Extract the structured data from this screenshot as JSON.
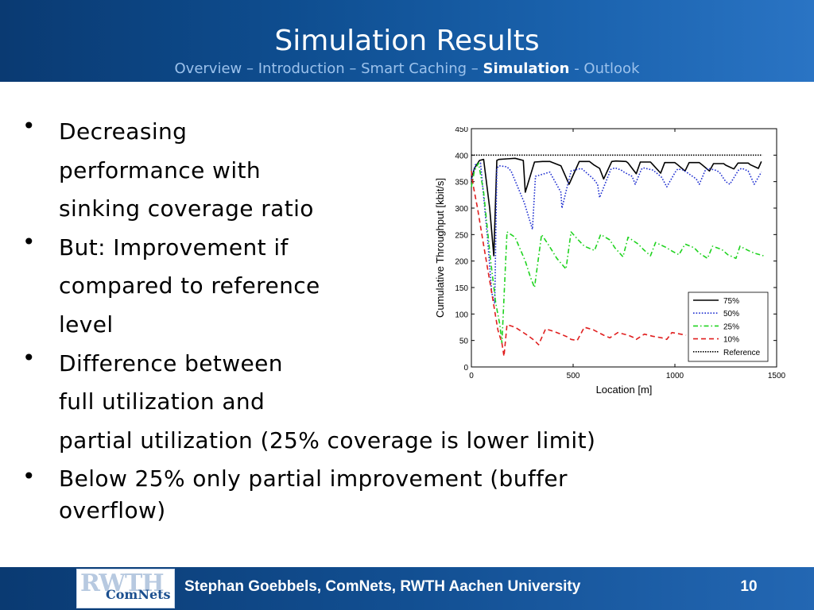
{
  "slide": {
    "title": "Simulation Results",
    "breadcrumb": {
      "prefix": "Overview – Introduction – Smart Caching – ",
      "current": "Simulation",
      "suffix": " - Outlook"
    },
    "bullets": [
      {
        "marker": "•",
        "lines": [
          "Decreasing",
          "performance with",
          "sinking coverage ratio"
        ]
      },
      {
        "marker": "•",
        "lines": [
          "But: Improvement if",
          "compared to reference",
          "level"
        ]
      },
      {
        "marker": "•",
        "lines": [
          "Difference between",
          "full utilization and",
          "partial utilization (25% coverage is lower limit)"
        ]
      },
      {
        "marker": "•",
        "lines": [
          "Below 25% only partial improvement (buffer",
          "overflow)"
        ]
      }
    ],
    "footer": {
      "logo_top": "RWTH",
      "logo_bottom": "ComNets",
      "author": "Stephan Goebbels, ComNets, RWTH Aachen University",
      "page": "10"
    },
    "colors": {
      "header_bg": "#0e4d8f",
      "breadcrumb": "#9cc2ec",
      "footer_bg": "#124f92"
    }
  },
  "chart_data": {
    "type": "line",
    "title": "",
    "xlabel": "Location [m]",
    "ylabel": "Cumulative Throughput [kbit/s]",
    "xlim": [
      0,
      1500
    ],
    "ylim": [
      0,
      450
    ],
    "xticks": [
      0,
      500,
      1000,
      1500
    ],
    "yticks": [
      0,
      50,
      100,
      150,
      200,
      250,
      300,
      350,
      400,
      450
    ],
    "grid": false,
    "legend_position": "bottom-right",
    "series": [
      {
        "name": "75%",
        "color": "#000000",
        "dash": "solid",
        "x": [
          0,
          15,
          40,
          60,
          90,
          110,
          125,
          135,
          175,
          215,
          255,
          265,
          310,
          350,
          385,
          440,
          480,
          530,
          580,
          600,
          630,
          650,
          690,
          710,
          760,
          770,
          810,
          830,
          880,
          890,
          930,
          950,
          1000,
          1010,
          1050,
          1070,
          1120,
          1130,
          1170,
          1190,
          1240,
          1250,
          1290,
          1310,
          1360,
          1370,
          1410,
          1425
        ],
        "y": [
          355,
          375,
          390,
          392,
          300,
          210,
          390,
          392,
          393,
          394,
          390,
          330,
          387,
          388,
          388,
          380,
          345,
          388,
          388,
          382,
          375,
          355,
          388,
          389,
          388,
          385,
          365,
          387,
          387,
          383,
          366,
          386,
          386,
          383,
          370,
          386,
          386,
          383,
          370,
          384,
          384,
          381,
          374,
          385,
          385,
          382,
          375,
          388
        ]
      },
      {
        "name": "50%",
        "color": "#1f2fd0",
        "dash": "dot",
        "x": [
          0,
          20,
          45,
          80,
          100,
          115,
          125,
          135,
          175,
          195,
          260,
          300,
          315,
          385,
          440,
          445,
          490,
          540,
          550,
          600,
          620,
          630,
          685,
          705,
          735,
          750,
          790,
          805,
          835,
          845,
          890,
          905,
          935,
          960,
          1005,
          1015,
          1040,
          1060,
          1105,
          1120,
          1150,
          1165,
          1205,
          1220,
          1250,
          1270,
          1315,
          1330,
          1360,
          1390,
          1425
        ],
        "y": [
          355,
          382,
          385,
          240,
          140,
          120,
          375,
          380,
          378,
          370,
          310,
          260,
          360,
          368,
          330,
          300,
          370,
          375,
          372,
          355,
          345,
          320,
          373,
          376,
          372,
          368,
          360,
          345,
          373,
          376,
          372,
          368,
          358,
          340,
          370,
          374,
          372,
          367,
          355,
          345,
          372,
          375,
          371,
          367,
          350,
          345,
          373,
          375,
          370,
          345,
          368
        ]
      },
      {
        "name": "25%",
        "color": "#1fd31f",
        "dash": "dashdot",
        "x": [
          0,
          15,
          35,
          60,
          95,
          120,
          140,
          150,
          175,
          215,
          265,
          290,
          310,
          345,
          380,
          420,
          465,
          490,
          525,
          555,
          605,
          635,
          680,
          705,
          745,
          770,
          820,
          845,
          880,
          905,
          955,
          990,
          1020,
          1050,
          1095,
          1120,
          1160,
          1185,
          1230,
          1260,
          1300,
          1320,
          1360,
          1390,
          1435
        ],
        "y": [
          340,
          370,
          385,
          330,
          200,
          120,
          80,
          45,
          255,
          245,
          200,
          170,
          150,
          250,
          230,
          205,
          185,
          255,
          240,
          228,
          220,
          250,
          240,
          225,
          208,
          245,
          232,
          222,
          210,
          235,
          226,
          218,
          212,
          232,
          225,
          215,
          205,
          228,
          222,
          212,
          205,
          228,
          220,
          215,
          210
        ]
      },
      {
        "name": "10%",
        "color": "#e01f1f",
        "dash": "dash",
        "x": [
          0,
          10,
          30,
          60,
          100,
          130,
          150,
          160,
          175,
          215,
          275,
          310,
          330,
          365,
          405,
          440,
          470,
          490,
          520,
          555,
          600,
          625,
          650,
          680,
          720,
          770,
          800,
          810,
          850,
          890,
          935,
          960,
          985,
          1015,
          1055
        ],
        "y": [
          370,
          340,
          300,
          230,
          140,
          70,
          45,
          20,
          80,
          75,
          60,
          50,
          42,
          72,
          67,
          62,
          57,
          52,
          50,
          75,
          70,
          65,
          60,
          55,
          65,
          60,
          55,
          52,
          62,
          58,
          55,
          52,
          65,
          63,
          60
        ]
      },
      {
        "name": "Reference",
        "color": "#000000",
        "dash": "densedot",
        "x": [
          0,
          1430
        ],
        "y": [
          400,
          400
        ]
      }
    ]
  }
}
